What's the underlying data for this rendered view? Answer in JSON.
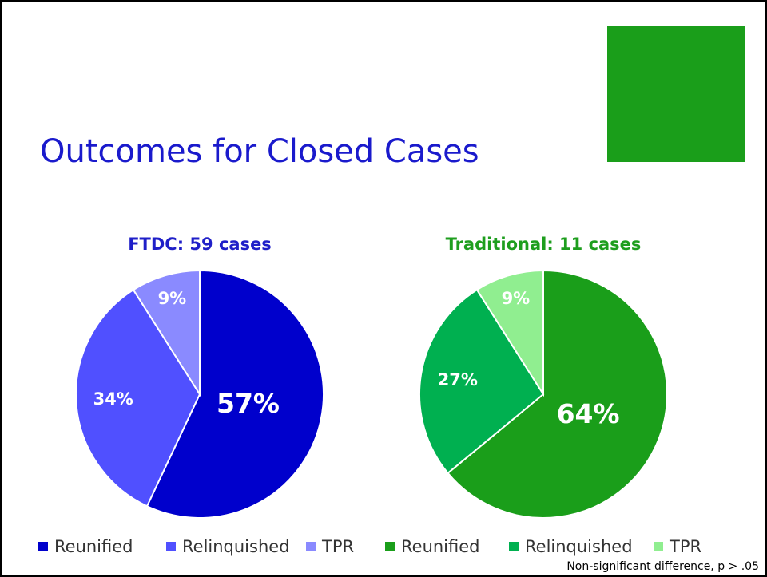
{
  "title": "Outcomes for Closed Cases",
  "chart_data": [
    {
      "type": "pie",
      "title": "FTDC: 59 cases",
      "title_color": "#1f1fc8",
      "categories": [
        "Reunified",
        "Relinquished",
        "TPR"
      ],
      "values": [
        57,
        34,
        9
      ],
      "value_labels": [
        "57%",
        "34%",
        "9%"
      ],
      "colors": [
        "#0000cc",
        "#5050ff",
        "#8a8aff"
      ]
    },
    {
      "type": "pie",
      "title": "Traditional: 11 cases",
      "title_color": "#1e9e1e",
      "categories": [
        "Reunified",
        "Relinquished",
        "TPR"
      ],
      "values": [
        64,
        27,
        9
      ],
      "value_labels": [
        "64%",
        "27%",
        "9%"
      ],
      "colors": [
        "#1a9e1a",
        "#00b050",
        "#90ee90"
      ]
    }
  ],
  "note": "Non-significant difference, p > .05"
}
